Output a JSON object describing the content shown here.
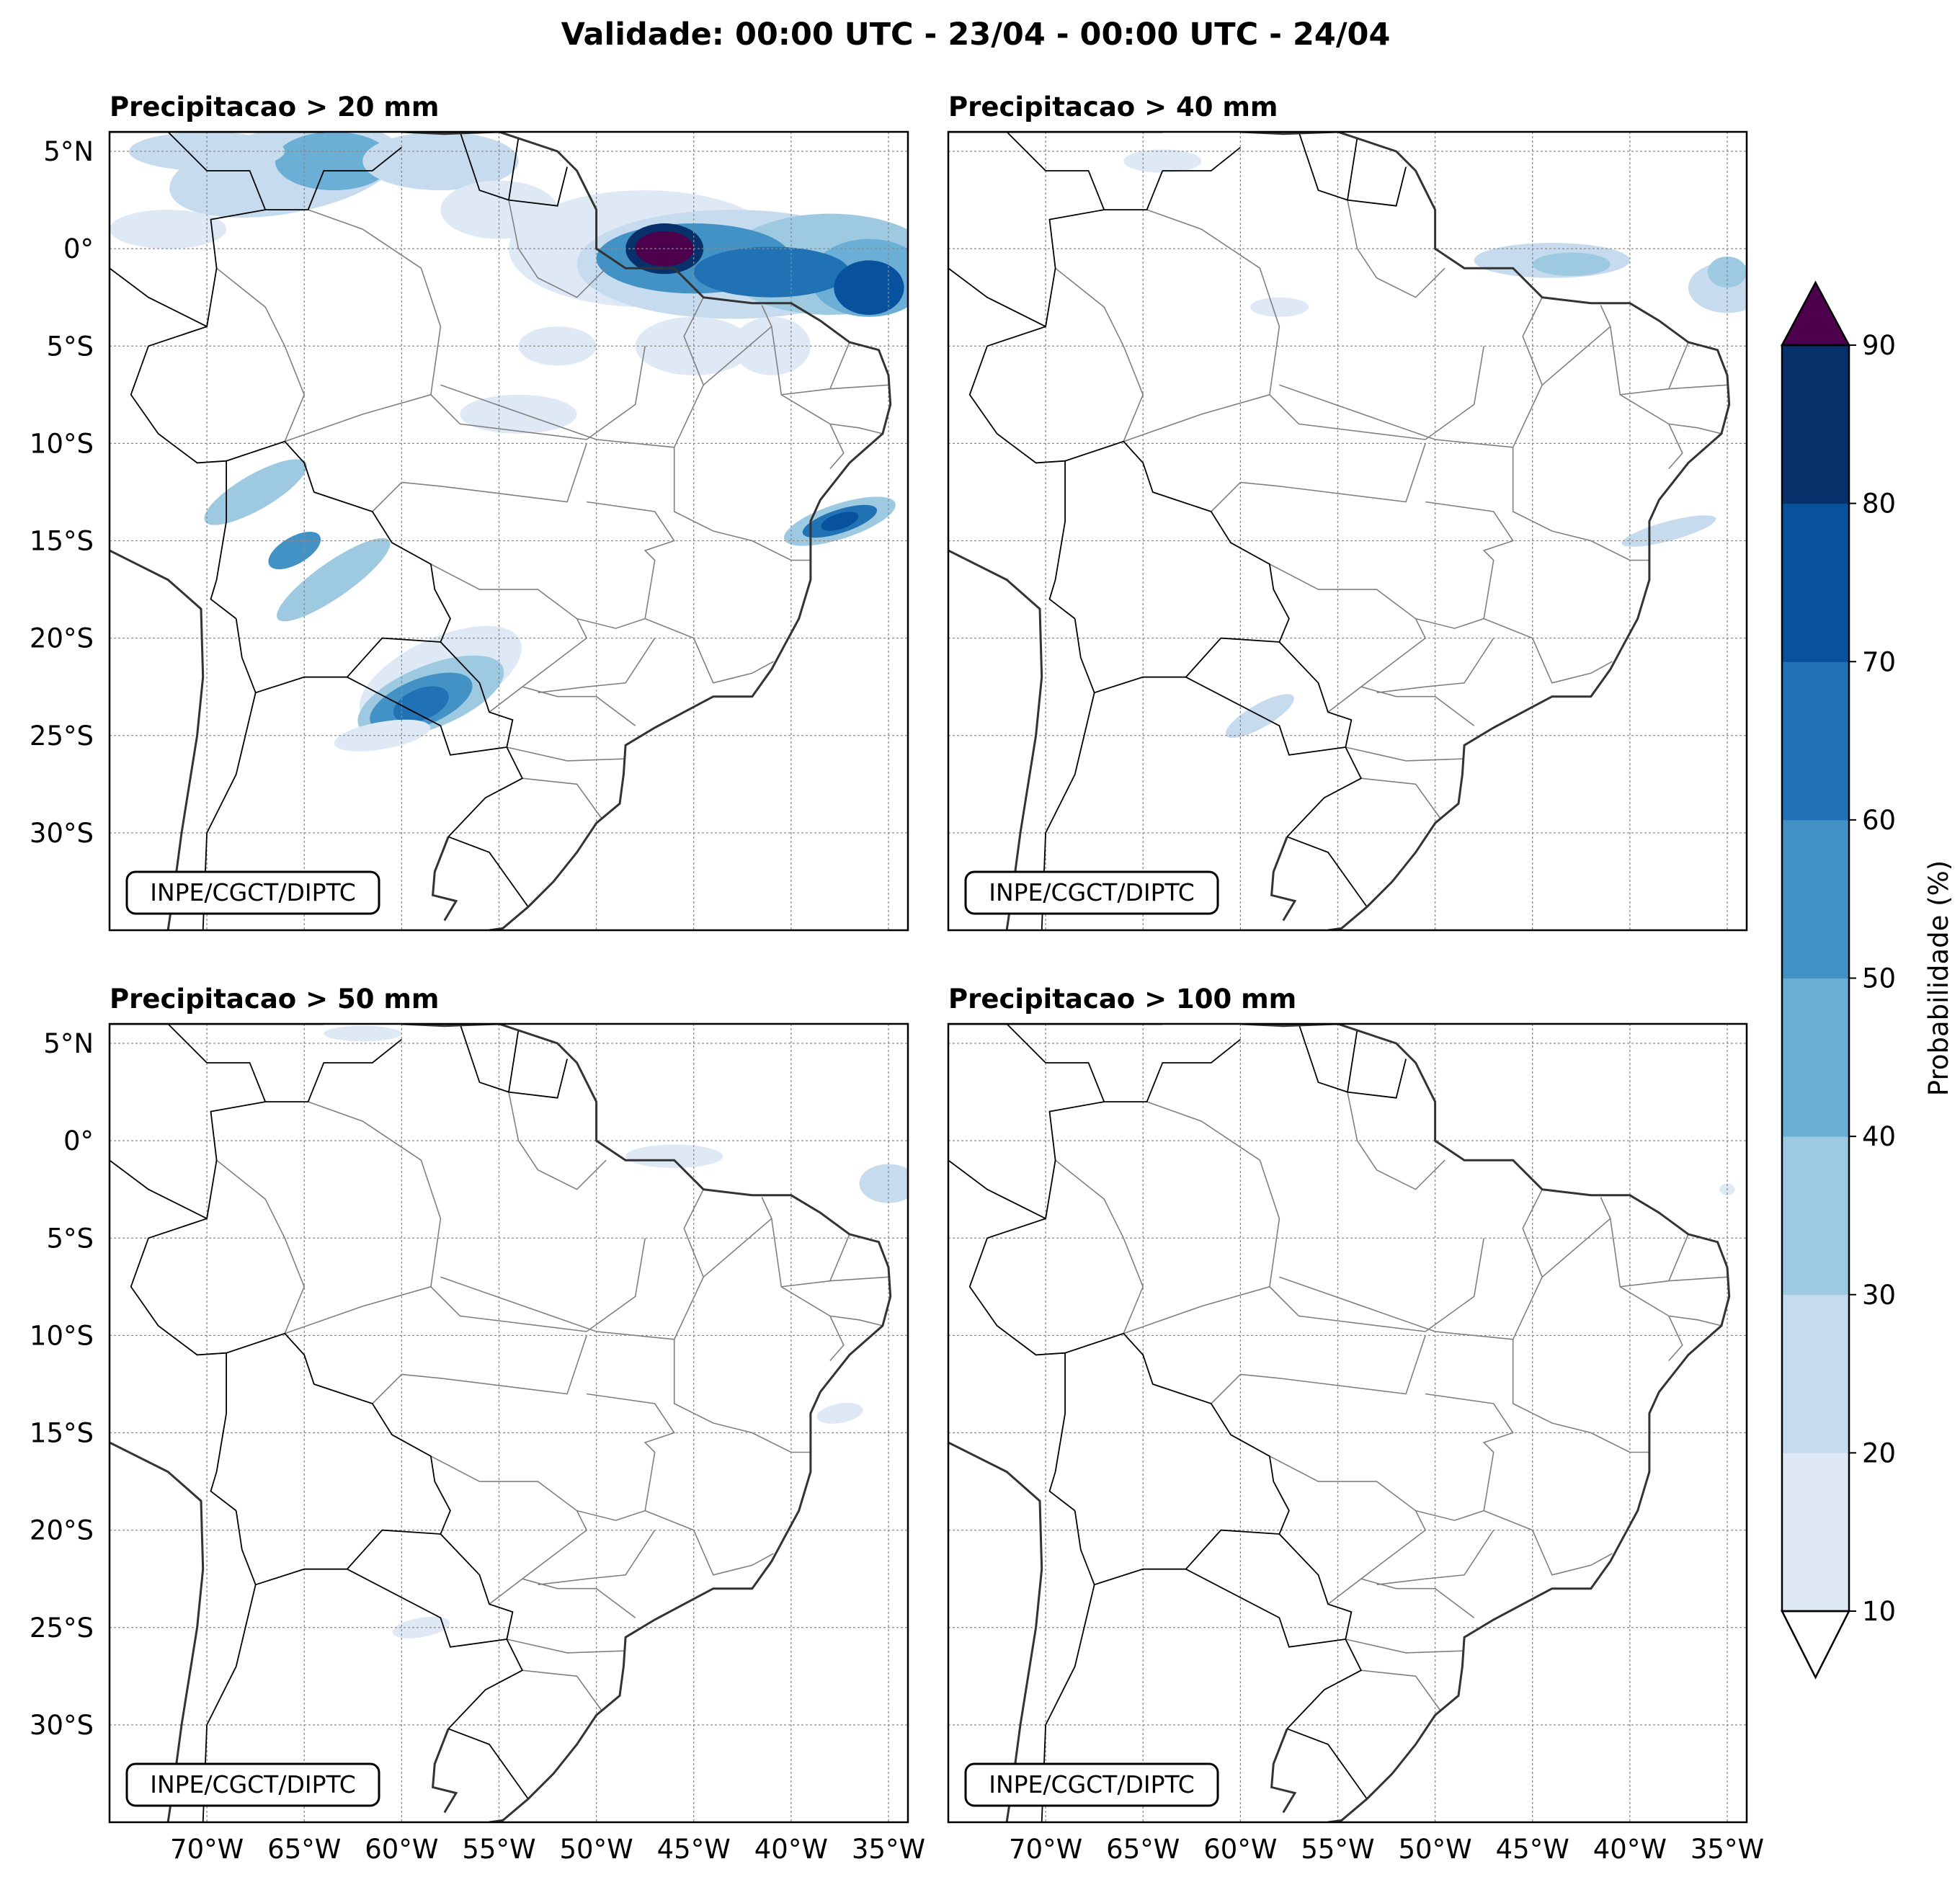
{
  "figure": {
    "title": "Validade: 00:00 UTC - 23/04 - 00:00 UTC - 24/04"
  },
  "panels": [
    {
      "title": "Precipitacao > 20 mm",
      "credit": "INPE/CGCT/DIPTC",
      "show_lat_labels": true,
      "show_lon_labels": false
    },
    {
      "title": "Precipitacao > 40 mm",
      "credit": "INPE/CGCT/DIPTC",
      "show_lat_labels": false,
      "show_lon_labels": false
    },
    {
      "title": "Precipitacao > 50 mm",
      "credit": "INPE/CGCT/DIPTC",
      "show_lat_labels": true,
      "show_lon_labels": true
    },
    {
      "title": "Precipitacao > 100 mm",
      "credit": "INPE/CGCT/DIPTC",
      "show_lat_labels": false,
      "show_lon_labels": true
    }
  ],
  "map": {
    "lon_range": [
      -75,
      -34
    ],
    "lat_range": [
      -35,
      6
    ],
    "lon_ticks": [
      -70,
      -65,
      -60,
      -55,
      -50,
      -45,
      -40,
      -35
    ],
    "lon_tick_labels": [
      "70°W",
      "65°W",
      "60°W",
      "55°W",
      "50°W",
      "45°W",
      "40°W",
      "35°W"
    ],
    "lat_ticks": [
      5,
      0,
      -5,
      -10,
      -15,
      -20,
      -25,
      -30
    ],
    "lat_tick_labels": [
      "5°N",
      "0°",
      "5°S",
      "10°S",
      "15°S",
      "20°S",
      "25°S",
      "30°S"
    ],
    "gridlines": true
  },
  "colorbar": {
    "label": "Probabilidade (%)",
    "levels": [
      10,
      20,
      30,
      40,
      50,
      60,
      70,
      80,
      90
    ],
    "tick_labels": [
      "10",
      "20",
      "30",
      "40",
      "50",
      "60",
      "70",
      "80",
      "90"
    ],
    "colors": [
      "#dfe9f5",
      "#c7dbef",
      "#9ecae1",
      "#6baed6",
      "#4292c6",
      "#2171b5",
      "#08519c",
      "#08306b"
    ],
    "under_color": "#ffffff",
    "over_color": "#4d004b",
    "extend": "both"
  },
  "coast_color": "#000000",
  "border_color": "#808080"
}
